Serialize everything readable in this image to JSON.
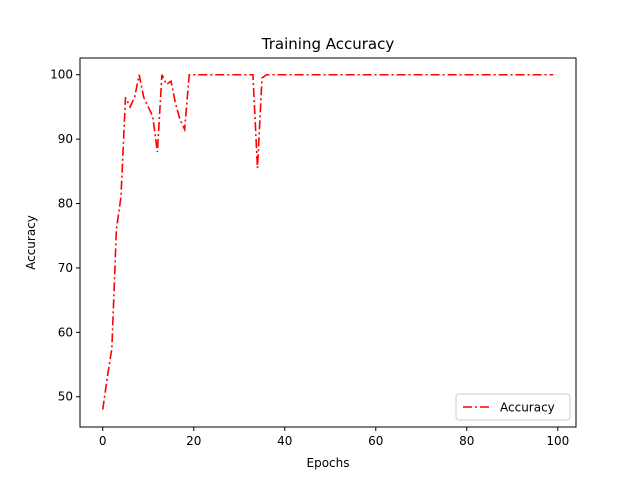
{
  "chart_data": {
    "type": "line",
    "title": "Training Accuracy",
    "xlabel": "Epochs",
    "ylabel": "Accuracy",
    "xlim": [
      -5,
      104
    ],
    "ylim": [
      45.3,
      102.6
    ],
    "xticks": [
      0,
      20,
      40,
      60,
      80,
      100
    ],
    "yticks": [
      50,
      60,
      70,
      80,
      90,
      100
    ],
    "grid": false,
    "legend_position": "lower-right",
    "series": [
      {
        "name": "Accuracy",
        "color": "#ff0000",
        "line_style": "dash-dot",
        "x": [
          0,
          1,
          2,
          3,
          4,
          5,
          6,
          7,
          8,
          9,
          10,
          11,
          12,
          13,
          14,
          15,
          16,
          17,
          18,
          19,
          20,
          21,
          22,
          23,
          24,
          25,
          26,
          27,
          28,
          29,
          30,
          31,
          32,
          33,
          34,
          35,
          36,
          37,
          38,
          39,
          40,
          41,
          42,
          43,
          44,
          45,
          46,
          47,
          48,
          49,
          50,
          51,
          52,
          53,
          54,
          55,
          56,
          57,
          58,
          59,
          60,
          61,
          62,
          63,
          64,
          65,
          66,
          67,
          68,
          69,
          70,
          71,
          72,
          73,
          74,
          75,
          76,
          77,
          78,
          79,
          80,
          81,
          82,
          83,
          84,
          85,
          86,
          87,
          88,
          89,
          90,
          91,
          92,
          93,
          94,
          95,
          96,
          97,
          98,
          99
        ],
        "y": [
          48.0,
          53.0,
          57.5,
          76.0,
          81.0,
          96.5,
          95.0,
          96.5,
          100,
          96.5,
          95.0,
          93.5,
          88.0,
          100,
          98.5,
          99.0,
          95.5,
          93.0,
          91.5,
          100,
          100,
          100,
          100,
          100,
          100,
          100,
          100,
          100,
          100,
          100,
          100,
          100,
          100,
          100,
          85.5,
          99.5,
          100,
          100,
          100,
          100,
          100,
          100,
          100,
          100,
          100,
          100,
          100,
          100,
          100,
          100,
          100,
          100,
          100,
          100,
          100,
          100,
          100,
          100,
          100,
          100,
          100,
          100,
          100,
          100,
          100,
          100,
          100,
          100,
          100,
          100,
          100,
          100,
          100,
          100,
          100,
          100,
          100,
          100,
          100,
          100,
          100,
          100,
          100,
          100,
          100,
          100,
          100,
          100,
          100,
          100,
          100,
          100,
          100,
          100,
          100,
          100,
          100,
          100,
          100,
          100
        ]
      }
    ]
  }
}
